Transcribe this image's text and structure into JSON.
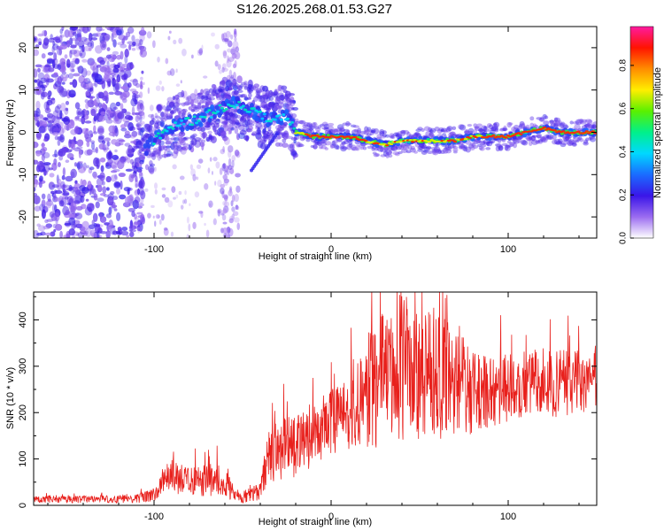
{
  "title": "S126.2025.268.01.53.G27",
  "chart_data": [
    {
      "type": "heatmap",
      "name": "spectrogram",
      "xlabel": "Height of straight line (km)",
      "ylabel": "Frequency (Hz)",
      "xlim": [
        -168,
        150
      ],
      "ylim": [
        -25,
        25
      ],
      "xticks": [
        -100,
        0,
        100
      ],
      "yticks": [
        -20,
        -10,
        0,
        10,
        20
      ],
      "colorbar": {
        "label": "Normalized spectral amplitude",
        "range": [
          0,
          0.98
        ],
        "ticks": [
          0.0,
          0.2,
          0.4,
          0.6,
          0.8
        ],
        "stops": [
          "#ffffff",
          "#9b6cf0",
          "#3a16e8",
          "#1a6cff",
          "#00d8ff",
          "#00f08a",
          "#5af000",
          "#ffee00",
          "#ff8c00",
          "#ff1400",
          "#ff1aa0"
        ]
      },
      "ridge": {
        "x": [
          -105,
          -95,
          -85,
          -75,
          -65,
          -55,
          -45,
          -35,
          -25,
          -20,
          -10,
          0,
          10,
          20,
          30,
          40,
          50,
          60,
          70,
          80,
          90,
          100,
          110,
          120,
          130,
          140,
          150
        ],
        "freq": [
          -4,
          0,
          2,
          3,
          5,
          7,
          5,
          3,
          4,
          0,
          -1,
          -1,
          -1,
          -2,
          -3,
          -2,
          -2,
          -2,
          -2,
          -1,
          -1,
          -1,
          0,
          1,
          0,
          0,
          0
        ]
      }
    },
    {
      "type": "line",
      "name": "snr",
      "xlabel": "Height of straight line (km)",
      "ylabel": "SNR (10 * v/v)",
      "xlim": [
        -168,
        150
      ],
      "ylim": [
        0,
        460
      ],
      "xticks": [
        -100,
        0,
        100
      ],
      "yticks": [
        0,
        100,
        200,
        300,
        400
      ],
      "color": "#e8201c",
      "envelope": {
        "x": [
          -168,
          -140,
          -110,
          -100,
          -95,
          -90,
          -80,
          -70,
          -60,
          -55,
          -50,
          -40,
          -38,
          -35,
          -30,
          -20,
          -10,
          0,
          10,
          20,
          25,
          30,
          40,
          50,
          60,
          70,
          80,
          90,
          100,
          110,
          120,
          130,
          140,
          150
        ],
        "base": [
          5,
          5,
          5,
          8,
          20,
          25,
          20,
          20,
          18,
          8,
          5,
          10,
          30,
          50,
          50,
          60,
          80,
          110,
          120,
          120,
          120,
          130,
          140,
          140,
          140,
          150,
          150,
          170,
          180,
          180,
          190,
          190,
          200,
          200
        ],
        "amp": [
          15,
          15,
          18,
          30,
          60,
          80,
          70,
          70,
          70,
          30,
          25,
          40,
          80,
          120,
          130,
          150,
          140,
          140,
          160,
          240,
          300,
          320,
          320,
          320,
          280,
          240,
          180,
          150,
          150,
          160,
          150,
          150,
          130,
          130
        ]
      }
    }
  ]
}
